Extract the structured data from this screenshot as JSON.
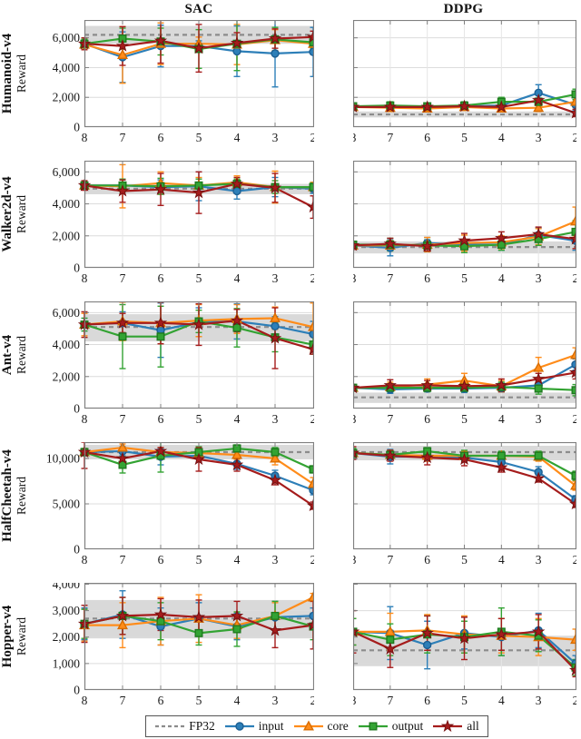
{
  "header": {
    "left": "SAC",
    "right": "DDPG"
  },
  "x_ticks": [
    8,
    7,
    6,
    5,
    4,
    3,
    2
  ],
  "x_tick_labels": [
    "8",
    "7",
    "6",
    "5",
    "4",
    "3",
    "2"
  ],
  "series_styles": {
    "input": {
      "color": "#2d7fb8",
      "edge": "#1c5f93",
      "marker": "circle"
    },
    "core": {
      "color": "#ff8c1a",
      "edge": "#d96d00",
      "marker": "triangle"
    },
    "output": {
      "color": "#33a333",
      "edge": "#1f7a1f",
      "marker": "square"
    },
    "all": {
      "color": "#a51c1c",
      "edge": "#771010",
      "marker": "star"
    },
    "fp32": {
      "color": "#8c8c8c",
      "band_color": "#cfcfcf"
    }
  },
  "legend": {
    "items": [
      {
        "label": "FP32",
        "style": "fp32",
        "marker": "dash"
      },
      {
        "label": "input",
        "style": "input",
        "marker": "circle"
      },
      {
        "label": "core",
        "style": "core",
        "marker": "triangle"
      },
      {
        "label": "output",
        "style": "output",
        "marker": "square"
      },
      {
        "label": "all",
        "style": "all",
        "marker": "star"
      }
    ]
  },
  "chart_data": [
    {
      "env": "Humanoid-v4",
      "algo": "SAC",
      "ylabel": "Reward",
      "type": "line",
      "ylim": [
        0,
        7200
      ],
      "yticks": [
        0,
        2000,
        4000,
        6000
      ],
      "ytick_labels": [
        "0",
        "2,000",
        "4,000",
        "6,000"
      ],
      "fp32": {
        "mean": 6200,
        "band": [
          5600,
          6800
        ]
      },
      "series": [
        {
          "name": "input",
          "values": [
            5600,
            4700,
            5450,
            5450,
            5100,
            4950,
            5050
          ],
          "errors": [
            250,
            1700,
            1400,
            350,
            1700,
            2250,
            1650
          ]
        },
        {
          "name": "core",
          "values": [
            5550,
            4850,
            5600,
            5600,
            5550,
            5850,
            5600
          ],
          "errors": [
            350,
            1900,
            1400,
            450,
            1350,
            700,
            500
          ]
        },
        {
          "name": "output",
          "values": [
            5600,
            5950,
            5750,
            5250,
            5600,
            5900,
            5700
          ],
          "errors": [
            300,
            700,
            900,
            1300,
            1800,
            800,
            400
          ]
        },
        {
          "name": "all",
          "values": [
            5600,
            5450,
            5800,
            5300,
            5650,
            5950,
            6050
          ],
          "errors": [
            400,
            1300,
            1500,
            1600,
            700,
            650,
            400
          ]
        }
      ]
    },
    {
      "env": "Humanoid-v4",
      "algo": "DDPG",
      "ylabel": "Reward",
      "type": "line",
      "ylim": [
        0,
        7200
      ],
      "yticks": [
        0,
        2000,
        4000,
        6000
      ],
      "ytick_labels": [],
      "fp32": {
        "mean": 850,
        "band": [
          650,
          1050
        ]
      },
      "series": [
        {
          "name": "input",
          "values": [
            1350,
            1400,
            1350,
            1400,
            1450,
            2300,
            1500
          ],
          "errors": [
            150,
            250,
            150,
            200,
            200,
            550,
            350
          ]
        },
        {
          "name": "core",
          "values": [
            1350,
            1300,
            1250,
            1350,
            1250,
            1300,
            1700
          ],
          "errors": [
            150,
            250,
            200,
            200,
            150,
            250,
            300
          ]
        },
        {
          "name": "output",
          "values": [
            1400,
            1450,
            1400,
            1450,
            1700,
            1700,
            2200
          ],
          "errors": [
            150,
            250,
            200,
            250,
            300,
            250,
            350
          ]
        },
        {
          "name": "all",
          "values": [
            1350,
            1350,
            1350,
            1400,
            1350,
            1800,
            950
          ],
          "errors": [
            150,
            200,
            200,
            250,
            250,
            350,
            250
          ]
        }
      ]
    },
    {
      "env": "Walker2d-v4",
      "algo": "SAC",
      "ylabel": "Reward",
      "type": "line",
      "ylim": [
        0,
        6700
      ],
      "yticks": [
        0,
        2000,
        4000,
        6000
      ],
      "ytick_labels": [
        "0",
        "2,000",
        "4,000",
        "6,000"
      ],
      "fp32": {
        "mean": 4950,
        "band": [
          4600,
          5250
        ]
      },
      "series": [
        {
          "name": "input",
          "values": [
            5150,
            5150,
            5050,
            5100,
            4800,
            5050,
            4950
          ],
          "errors": [
            250,
            350,
            450,
            900,
            500,
            600,
            300
          ]
        },
        {
          "name": "core",
          "values": [
            5150,
            5100,
            5300,
            5150,
            5350,
            5050,
            5050
          ],
          "errors": [
            250,
            1350,
            700,
            500,
            400,
            1000,
            300
          ]
        },
        {
          "name": "output",
          "values": [
            5150,
            5150,
            5100,
            5150,
            5250,
            5050,
            5050
          ],
          "errors": [
            250,
            400,
            500,
            400,
            300,
            400,
            250
          ]
        },
        {
          "name": "all",
          "values": [
            5150,
            4800,
            4900,
            4700,
            5250,
            5000,
            3800
          ],
          "errors": [
            300,
            700,
            1000,
            1300,
            400,
            900,
            700
          ]
        }
      ]
    },
    {
      "env": "Walker2d-v4",
      "algo": "DDPG",
      "ylabel": "Reward",
      "type": "line",
      "ylim": [
        0,
        6700
      ],
      "yticks": [
        0,
        2000,
        4000,
        6000
      ],
      "ytick_labels": [],
      "fp32": {
        "mean": 1300,
        "band": [
          900,
          1650
        ]
      },
      "series": [
        {
          "name": "input",
          "values": [
            1400,
            1250,
            1550,
            1450,
            1450,
            2050,
            1700
          ],
          "errors": [
            200,
            500,
            350,
            300,
            350,
            450,
            600
          ]
        },
        {
          "name": "core",
          "values": [
            1400,
            1400,
            1450,
            1550,
            1600,
            1950,
            2900
          ],
          "errors": [
            200,
            300,
            450,
            500,
            400,
            500,
            900
          ]
        },
        {
          "name": "output",
          "values": [
            1450,
            1450,
            1400,
            1350,
            1450,
            1800,
            2250
          ],
          "errors": [
            200,
            400,
            350,
            400,
            350,
            400,
            700
          ]
        },
        {
          "name": "all",
          "values": [
            1400,
            1500,
            1350,
            1700,
            1850,
            2100,
            1800
          ],
          "errors": [
            250,
            350,
            300,
            450,
            400,
            450,
            600
          ]
        }
      ]
    },
    {
      "env": "Ant-v4",
      "algo": "SAC",
      "ylabel": "Reward",
      "type": "line",
      "ylim": [
        0,
        6700
      ],
      "yticks": [
        0,
        2000,
        4000,
        6000
      ],
      "ytick_labels": [
        "0",
        "2,000",
        "4,000",
        "6,000"
      ],
      "fp32": {
        "mean": 5100,
        "band": [
          4200,
          5900
        ]
      },
      "series": [
        {
          "name": "input",
          "values": [
            5250,
            5350,
            4900,
            5400,
            5450,
            5150,
            4650
          ],
          "errors": [
            400,
            700,
            1700,
            900,
            1100,
            600,
            800
          ]
        },
        {
          "name": "core",
          "values": [
            5250,
            5450,
            5350,
            5500,
            5600,
            5650,
            5100
          ],
          "errors": [
            700,
            1200,
            1300,
            1000,
            900,
            700,
            1500
          ]
        },
        {
          "name": "output",
          "values": [
            5250,
            4500,
            4500,
            5450,
            5050,
            4450,
            4000
          ],
          "errors": [
            400,
            2000,
            1900,
            700,
            1200,
            900,
            600
          ]
        },
        {
          "name": "all",
          "values": [
            5250,
            5350,
            5350,
            5250,
            5500,
            4400,
            3700
          ],
          "errors": [
            800,
            600,
            1300,
            1300,
            700,
            1900,
            300
          ]
        }
      ]
    },
    {
      "env": "Ant-v4",
      "algo": "DDPG",
      "ylabel": "Reward",
      "type": "line",
      "ylim": [
        0,
        6700
      ],
      "yticks": [
        0,
        2000,
        4000,
        6000
      ],
      "ytick_labels": [],
      "fp32": {
        "mean": 700,
        "band": [
          350,
          1000
        ]
      },
      "series": [
        {
          "name": "input",
          "values": [
            1300,
            1200,
            1250,
            1250,
            1300,
            1450,
            2750
          ],
          "errors": [
            150,
            250,
            200,
            250,
            250,
            300,
            350
          ]
        },
        {
          "name": "core",
          "values": [
            1300,
            1350,
            1500,
            1750,
            1400,
            2550,
            3350
          ],
          "errors": [
            150,
            300,
            350,
            450,
            350,
            650,
            450
          ]
        },
        {
          "name": "output",
          "values": [
            1300,
            1300,
            1300,
            1300,
            1350,
            1250,
            1150
          ],
          "errors": [
            150,
            250,
            250,
            250,
            300,
            350,
            350
          ]
        },
        {
          "name": "all",
          "values": [
            1300,
            1450,
            1450,
            1400,
            1450,
            1850,
            2250
          ],
          "errors": [
            200,
            350,
            300,
            300,
            400,
            350,
            400
          ]
        }
      ]
    },
    {
      "env": "HalfCheetah-v4",
      "algo": "SAC",
      "ylabel": "Reward",
      "type": "line",
      "ylim": [
        0,
        11800
      ],
      "yticks": [
        0,
        5000,
        10000
      ],
      "ytick_labels": [
        "0",
        "5,000",
        "10,000"
      ],
      "fp32": {
        "mean": 10700,
        "band": [
          9900,
          11500
        ]
      },
      "series": [
        {
          "name": "input",
          "values": [
            10700,
            10800,
            10200,
            10300,
            9400,
            8100,
            6500
          ],
          "errors": [
            400,
            500,
            900,
            700,
            600,
            600,
            500
          ]
        },
        {
          "name": "core",
          "values": [
            10700,
            11200,
            10700,
            10600,
            10400,
            10000,
            7200
          ],
          "errors": [
            400,
            400,
            500,
            500,
            500,
            700,
            700
          ]
        },
        {
          "name": "output",
          "values": [
            10700,
            9300,
            10300,
            10700,
            11100,
            10700,
            8800
          ],
          "errors": [
            400,
            900,
            1800,
            600,
            400,
            500,
            400
          ]
        },
        {
          "name": "all",
          "values": [
            10700,
            10000,
            10800,
            9900,
            9300,
            7600,
            4800
          ],
          "errors": [
            1800,
            700,
            400,
            1300,
            700,
            500,
            400
          ]
        }
      ]
    },
    {
      "env": "HalfCheetah-v4",
      "algo": "DDPG",
      "ylabel": "Reward",
      "type": "line",
      "ylim": [
        0,
        11800
      ],
      "yticks": [
        0,
        5000,
        10000
      ],
      "ytick_labels": [],
      "fp32": {
        "mean": 10700,
        "band": [
          9800,
          11400
        ]
      },
      "series": [
        {
          "name": "input",
          "values": [
            10600,
            10200,
            10200,
            10100,
            9600,
            8500,
            5500
          ],
          "errors": [
            500,
            800,
            500,
            500,
            500,
            600,
            400
          ]
        },
        {
          "name": "core",
          "values": [
            10600,
            10400,
            10300,
            10300,
            10300,
            10200,
            7000
          ],
          "errors": [
            500,
            500,
            600,
            500,
            400,
            500,
            500
          ]
        },
        {
          "name": "output",
          "values": [
            10600,
            10400,
            10800,
            10300,
            10300,
            10300,
            8100
          ],
          "errors": [
            500,
            500,
            400,
            600,
            500,
            500,
            500
          ]
        },
        {
          "name": "all",
          "values": [
            10600,
            10300,
            10100,
            9900,
            9000,
            7800,
            5000
          ],
          "errors": [
            700,
            600,
            800,
            700,
            500,
            400,
            400
          ]
        }
      ]
    },
    {
      "env": "Hopper-v4",
      "algo": "SAC",
      "ylabel": "Reward",
      "type": "line",
      "ylim": [
        0,
        4050
      ],
      "yticks": [
        0,
        1000,
        2000,
        3000,
        4000
      ],
      "ytick_labels": [
        "0",
        "1,000",
        "2,000",
        "3,000",
        "4,000"
      ],
      "fp32": {
        "mean": 2700,
        "band": [
          1950,
          3400
        ]
      },
      "series": [
        {
          "name": "input",
          "values": [
            2500,
            2850,
            2400,
            2700,
            2400,
            2750,
            2800
          ],
          "errors": [
            600,
            900,
            700,
            600,
            500,
            600,
            300
          ]
        },
        {
          "name": "core",
          "values": [
            2450,
            2450,
            2600,
            2700,
            2450,
            2800,
            3500
          ],
          "errors": [
            600,
            850,
            900,
            900,
            500,
            500,
            150
          ]
        },
        {
          "name": "output",
          "values": [
            2500,
            2800,
            2600,
            2150,
            2300,
            2800,
            2400
          ],
          "errors": [
            550,
            700,
            700,
            450,
            650,
            550,
            500
          ]
        },
        {
          "name": "all",
          "values": [
            2500,
            2800,
            2850,
            2750,
            2800,
            2250,
            2450
          ],
          "errors": [
            700,
            700,
            600,
            650,
            550,
            650,
            900
          ]
        }
      ]
    },
    {
      "env": "Hopper-v4",
      "algo": "DDPG",
      "ylabel": "Reward",
      "type": "line",
      "ylim": [
        0,
        4050
      ],
      "yticks": [
        0,
        1000,
        2000,
        3000,
        4000
      ],
      "ytick_labels": [],
      "fp32": {
        "mean": 1500,
        "band": [
          900,
          2050
        ]
      },
      "series": [
        {
          "name": "input",
          "values": [
            2200,
            2150,
            1700,
            2150,
            2000,
            2250,
            1000
          ],
          "errors": [
            500,
            1000,
            900,
            600,
            700,
            650,
            300
          ]
        },
        {
          "name": "core",
          "values": [
            2200,
            2200,
            2250,
            2100,
            2050,
            2000,
            1900
          ],
          "errors": [
            500,
            700,
            600,
            700,
            650,
            700,
            400
          ]
        },
        {
          "name": "output",
          "values": [
            2200,
            1900,
            2100,
            2000,
            2200,
            2050,
            850
          ],
          "errors": [
            500,
            600,
            700,
            600,
            900,
            600,
            300
          ]
        },
        {
          "name": "all",
          "values": [
            2200,
            1550,
            2150,
            1950,
            2100,
            2200,
            750
          ],
          "errors": [
            800,
            700,
            650,
            800,
            600,
            650,
            250
          ]
        }
      ]
    }
  ]
}
